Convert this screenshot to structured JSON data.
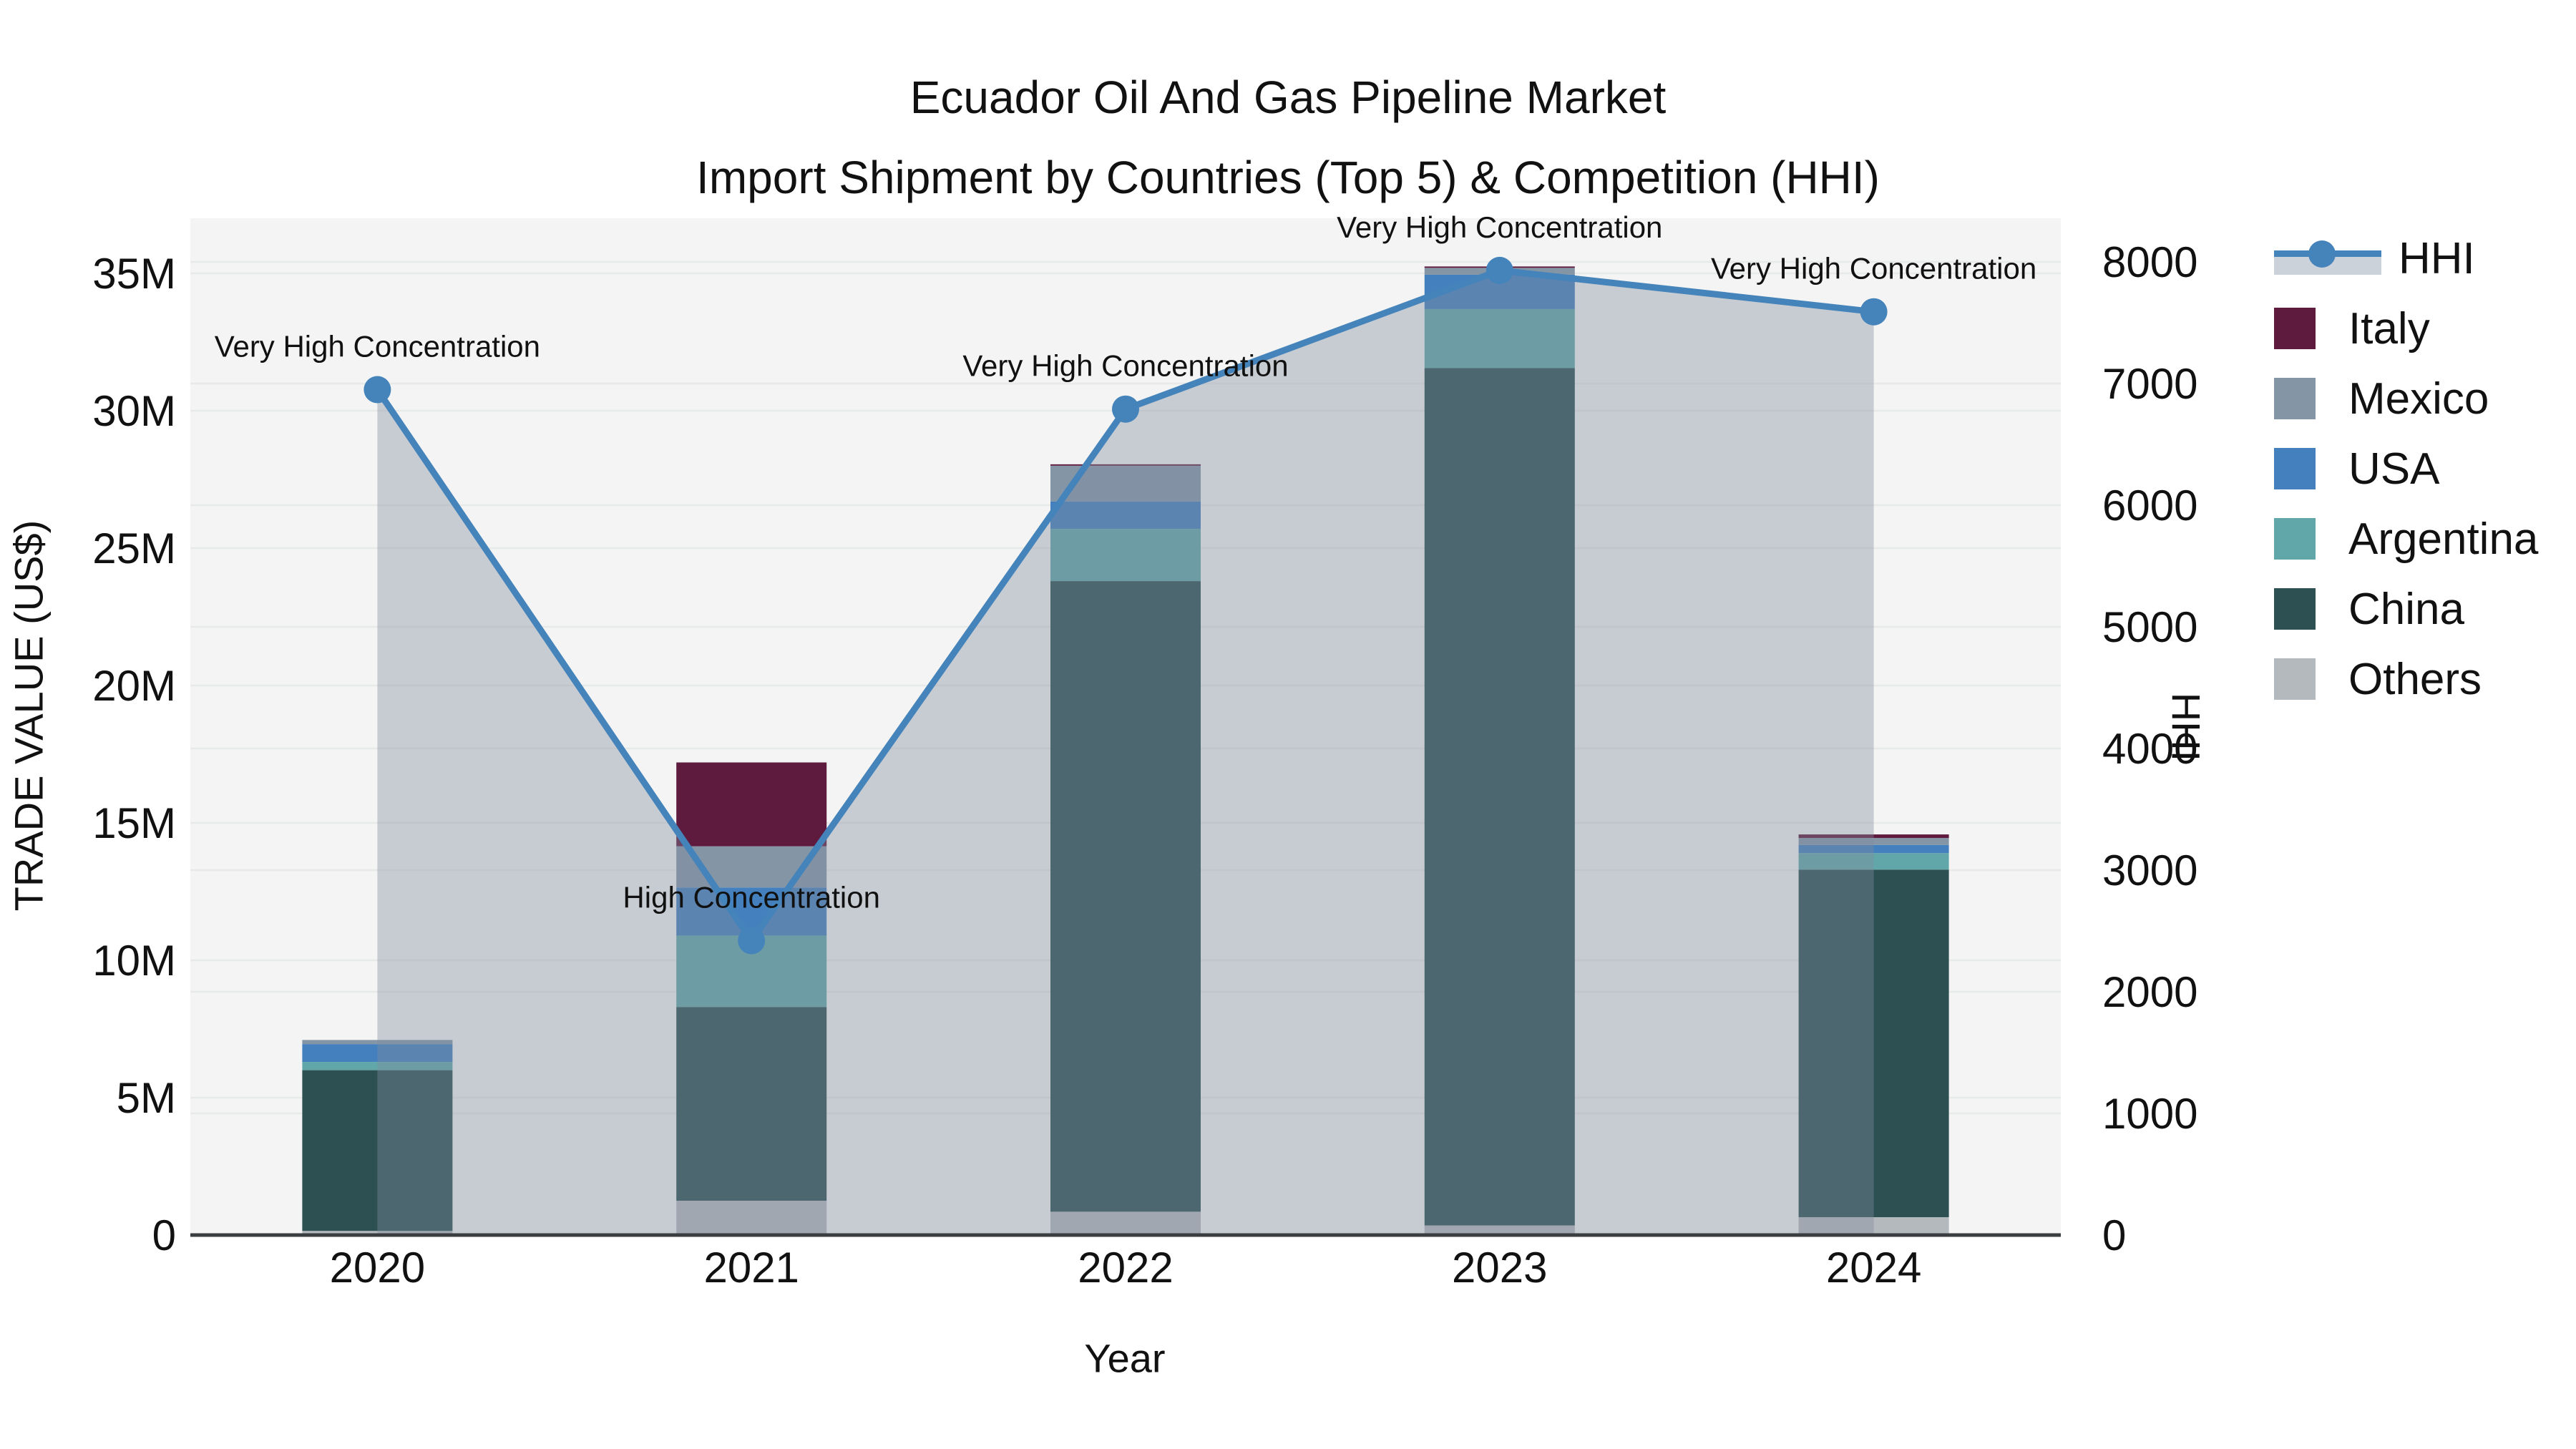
{
  "title": {
    "line1": "Ecuador Oil And Gas Pipeline Market",
    "line2": "Import Shipment by Countries (Top 5) & Competition (HHI)"
  },
  "axes": {
    "left": {
      "title": "TRADE VALUE (US$)",
      "ticks": [
        {
          "label": "0",
          "value": 0
        },
        {
          "label": "5M",
          "value": 5
        },
        {
          "label": "10M",
          "value": 10
        },
        {
          "label": "15M",
          "value": 15
        },
        {
          "label": "20M",
          "value": 20
        },
        {
          "label": "25M",
          "value": 25
        },
        {
          "label": "30M",
          "value": 30
        },
        {
          "label": "35M",
          "value": 35
        }
      ]
    },
    "right": {
      "title": "HHI",
      "ticks": [
        {
          "label": "0",
          "value": 0
        },
        {
          "label": "1000",
          "value": 1000
        },
        {
          "label": "2000",
          "value": 2000
        },
        {
          "label": "3000",
          "value": 3000
        },
        {
          "label": "4000",
          "value": 4000
        },
        {
          "label": "5000",
          "value": 5000
        },
        {
          "label": "6000",
          "value": 6000
        },
        {
          "label": "7000",
          "value": 7000
        },
        {
          "label": "8000",
          "value": 8000
        }
      ]
    },
    "x": {
      "title": "Year"
    }
  },
  "legend": {
    "items": [
      {
        "label": "HHI",
        "type": "line",
        "color": "#4583bb"
      },
      {
        "label": "Italy",
        "type": "swatch",
        "color": "#5e1b3e"
      },
      {
        "label": "Mexico",
        "type": "swatch",
        "color": "#8495a6"
      },
      {
        "label": "USA",
        "type": "swatch",
        "color": "#4480bd"
      },
      {
        "label": "Argentina",
        "type": "swatch",
        "color": "#61a7aa"
      },
      {
        "label": "China",
        "type": "swatch",
        "color": "#2d5153"
      },
      {
        "label": "Others",
        "type": "swatch",
        "color": "#b4b9bd"
      }
    ]
  },
  "chart_data": {
    "type": "bar",
    "subtype": "stacked-bars-with-line",
    "categories": [
      "2020",
      "2021",
      "2022",
      "2023",
      "2024"
    ],
    "bar_unit": "million US$",
    "series": [
      {
        "name": "Others",
        "color": "#b4b9bd",
        "values": [
          0.15,
          1.25,
          0.85,
          0.35,
          0.65
        ]
      },
      {
        "name": "China",
        "color": "#2d5153",
        "values": [
          5.85,
          7.05,
          22.95,
          31.2,
          12.65
        ]
      },
      {
        "name": "Argentina",
        "color": "#61a7aa",
        "values": [
          0.3,
          2.6,
          1.9,
          2.15,
          0.6
        ]
      },
      {
        "name": "USA",
        "color": "#4480bd",
        "values": [
          0.65,
          1.75,
          1.0,
          1.25,
          0.3
        ]
      },
      {
        "name": "Mexico",
        "color": "#8495a6",
        "values": [
          0.15,
          1.5,
          1.3,
          0.25,
          0.25
        ]
      },
      {
        "name": "Italy",
        "color": "#5e1b3e",
        "values": [
          0.0,
          3.05,
          0.05,
          0.05,
          0.13
        ]
      }
    ],
    "line_series": {
      "name": "HHI",
      "color": "#4583bb",
      "area_fill": "rgba(128,140,158,0.38)",
      "values": [
        6950,
        2420,
        6790,
        7930,
        7590
      ]
    },
    "annotations": [
      "Very High Concentration",
      "High Concentration",
      "Very High Concentration",
      "Very High Concentration",
      "Very High Concentration"
    ],
    "ylim_left_millions": [
      0,
      35
    ],
    "ylim_right": [
      0,
      8000
    ],
    "legend_position": "top-right",
    "grid": true,
    "plot_bg": "#f3f4f3",
    "grid_color": "#e8eae9",
    "axis_line_color": "#3a3e41"
  }
}
